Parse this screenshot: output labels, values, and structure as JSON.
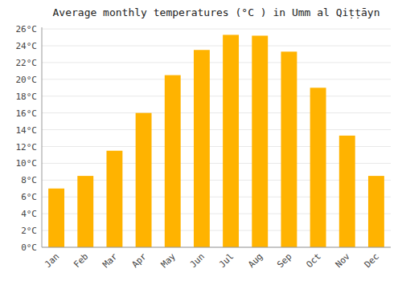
{
  "chart_data": {
    "type": "bar",
    "title": "Average monthly temperatures (°C ) in Umm al Qiṭṭāyn",
    "categories": [
      "Jan",
      "Feb",
      "Mar",
      "Apr",
      "May",
      "Jun",
      "Jul",
      "Aug",
      "Sep",
      "Oct",
      "Nov",
      "Dec"
    ],
    "values": [
      7.0,
      8.5,
      11.5,
      16.0,
      20.5,
      23.5,
      25.3,
      25.2,
      23.3,
      19.0,
      13.3,
      8.5
    ],
    "color": "#FFB300",
    "ylim": [
      0,
      26.2
    ],
    "yticks": [
      {
        "value": 0,
        "label": "0°C"
      },
      {
        "value": 2,
        "label": "2°C"
      },
      {
        "value": 4,
        "label": "4°C"
      },
      {
        "value": 6,
        "label": "6°C"
      },
      {
        "value": 8,
        "label": "8°C"
      },
      {
        "value": 10,
        "label": "10°C"
      },
      {
        "value": 12,
        "label": "12°C"
      },
      {
        "value": 14,
        "label": "14°C"
      },
      {
        "value": 16,
        "label": "16°C"
      },
      {
        "value": 18,
        "label": "18°C"
      },
      {
        "value": 20,
        "label": "20°C"
      },
      {
        "value": 22,
        "label": "22°C"
      },
      {
        "value": 24,
        "label": "24°C"
      },
      {
        "value": 26,
        "label": "26°C"
      }
    ],
    "grid": true
  }
}
